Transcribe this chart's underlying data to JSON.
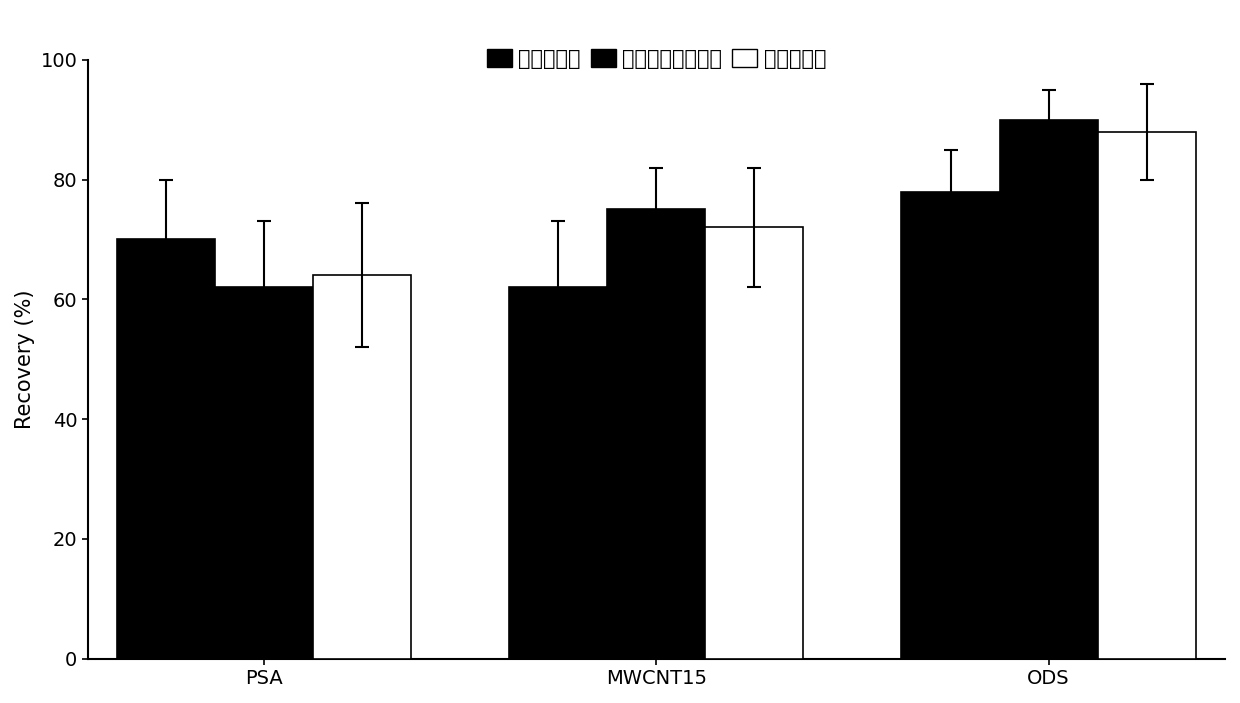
{
  "categories": [
    "PSA",
    "MWCNT15",
    "ODS"
  ],
  "series": [
    {
      "name": "盐酸氯苯胍",
      "values": [
        70,
        62,
        78
      ],
      "errors": [
        10,
        11,
        7
      ],
      "facecolor": "black",
      "edgecolor": "black",
      "hatch": "......"
    },
    {
      "name": "对氯苯甲酰胺乙酸",
      "values": [
        62,
        75,
        90
      ],
      "errors": [
        11,
        7,
        5
      ],
      "facecolor": "black",
      "edgecolor": "black",
      "hatch": ""
    },
    {
      "name": "对氯苯甲酸",
      "values": [
        64,
        72,
        88
      ],
      "errors": [
        12,
        10,
        8
      ],
      "facecolor": "white",
      "edgecolor": "black",
      "hatch": ""
    }
  ],
  "ylabel": "Recovery (%)",
  "ylim": [
    0,
    100
  ],
  "yticks": [
    0,
    20,
    40,
    60,
    80,
    100
  ],
  "bar_width": 0.25,
  "legend_fontsize": 15,
  "axis_fontsize": 15,
  "tick_fontsize": 14,
  "background_color": "white"
}
